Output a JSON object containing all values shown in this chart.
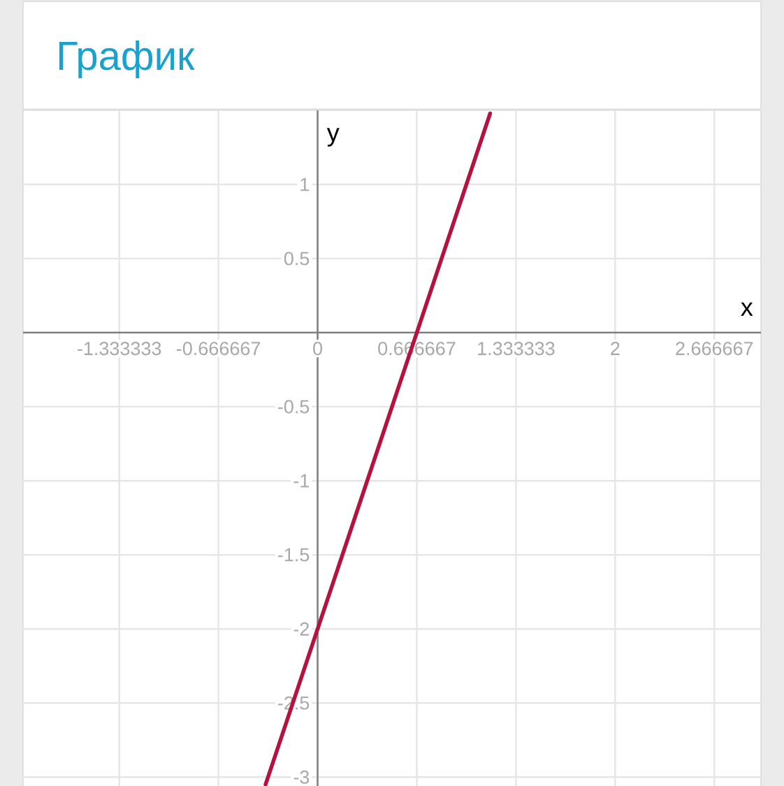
{
  "chart_data": {
    "type": "line",
    "title": "График",
    "xlabel": "x",
    "ylabel": "y",
    "x": [
      -0.35,
      0,
      0.666667,
      1.16
    ],
    "series": [
      {
        "color": "#b5123f",
        "values": [
          -3.05,
          -2,
          0,
          1.48
        ]
      }
    ],
    "xlim": [
      -1.98,
      2.98
    ],
    "ylim": [
      -3.06,
      1.5
    ],
    "xticks": [
      -1.333333,
      -0.666667,
      0,
      0.666667,
      1.333333,
      2,
      2.666667
    ],
    "yticks": [
      -3,
      -2.5,
      -2,
      -1.5,
      -1,
      -0.5,
      0.5,
      1
    ],
    "grid": true,
    "line_style": "solid"
  }
}
